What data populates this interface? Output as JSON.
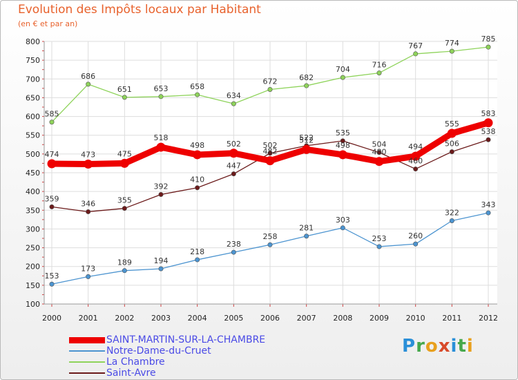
{
  "title": "Evolution des Impôts locaux par Habitant",
  "subtitle": "(en € et par an)",
  "brand": {
    "letters": [
      "P",
      "r",
      "o",
      "x",
      "i",
      "t",
      "i"
    ]
  },
  "chart_data": {
    "type": "line",
    "title": "Evolution des Impôts locaux par Habitant",
    "subtitle": "(en € et par an)",
    "xlabel": "",
    "ylabel": "",
    "x": [
      2000,
      2001,
      2002,
      2003,
      2004,
      2005,
      2006,
      2007,
      2008,
      2009,
      2010,
      2011,
      2012
    ],
    "ylim": [
      100,
      800
    ],
    "yticks": [
      100,
      150,
      200,
      250,
      300,
      350,
      400,
      450,
      500,
      550,
      600,
      650,
      700,
      750,
      800
    ],
    "grid": true,
    "legend_position": "bottom-left",
    "series": [
      {
        "name": "SAINT-MARTIN-SUR-LA-CHAMBRE",
        "color": "#ee0000",
        "emphasis": true,
        "values": [
          474,
          473,
          475,
          518,
          498,
          502,
          482,
          512,
          498,
          480,
          494,
          555,
          583
        ]
      },
      {
        "name": "Notre-Dame-du-Cruet",
        "color": "#4c94d0",
        "values": [
          153,
          173,
          189,
          194,
          218,
          238,
          258,
          281,
          303,
          253,
          260,
          322,
          343
        ]
      },
      {
        "name": "La Chambre",
        "color": "#8ed35a",
        "values": [
          585,
          686,
          651,
          653,
          658,
          634,
          672,
          682,
          704,
          716,
          767,
          774,
          785
        ]
      },
      {
        "name": "Saint-Avre",
        "color": "#6b1a1a",
        "values": [
          359,
          346,
          355,
          392,
          410,
          447,
          502,
          522,
          535,
          504,
          460,
          506,
          538
        ]
      }
    ]
  }
}
